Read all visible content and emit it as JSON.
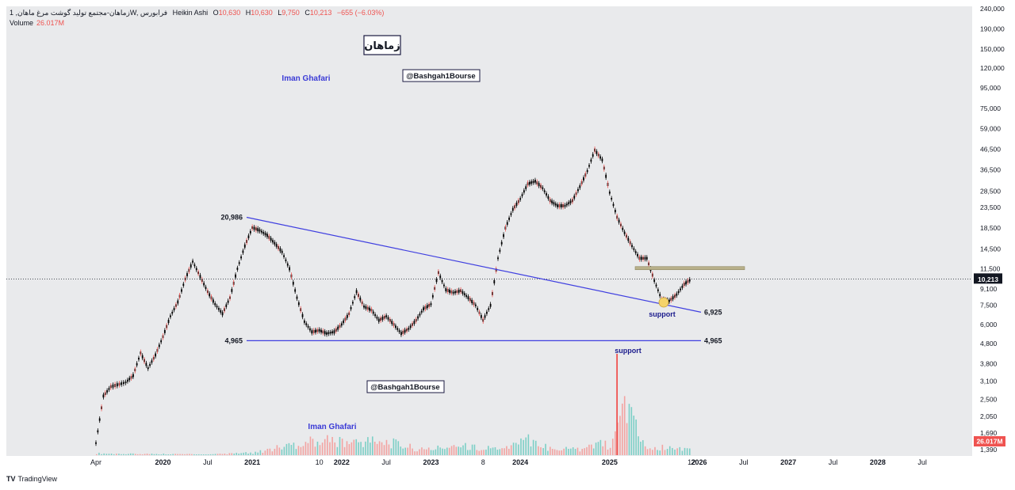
{
  "header": {
    "symbol": "زماهان-مجتمع تولید گوشت مرغ ماهان, 1W, فرابورس",
    "chart_style": "Heikin Ashi",
    "open_label": "O",
    "open": "10,630",
    "high_label": "H",
    "high": "10,630",
    "low_label": "L",
    "low": "9,750",
    "close_label": "C",
    "close": "10,213",
    "change": "−655 (−6.03%)"
  },
  "volume": {
    "label": "Volume",
    "value": "26.017M"
  },
  "footer": {
    "logo": "TV",
    "brand": "TradingView"
  },
  "colors": {
    "up": "#26a69a",
    "down": "#ef5350",
    "candle": "#000000",
    "trendline": "#3f3fe0",
    "support_zone": "#b8b08a",
    "background": "#e9eaec"
  },
  "chart_data": {
    "type": "line",
    "style": "heikin-ashi candles with volume",
    "scale": "log",
    "ylim": [
      1300,
      240000
    ],
    "y_ticks": [
      "240,000",
      "190,000",
      "150,000",
      "120,000",
      "95,000",
      "75,000",
      "59,000",
      "46,500",
      "36,500",
      "28,500",
      "23,500",
      "18,500",
      "14,500",
      "11,500",
      "9,100",
      "7,500",
      "6,000",
      "4,800",
      "3,800",
      "3,100",
      "2,500",
      "2,050",
      "1,690",
      "1,390"
    ],
    "y_tick_values": [
      240000,
      190000,
      150000,
      120000,
      95000,
      75000,
      59000,
      46500,
      36500,
      28500,
      23500,
      18500,
      14500,
      11500,
      9100,
      7500,
      6000,
      4800,
      3800,
      3100,
      2500,
      2050,
      1690,
      1390
    ],
    "x_ticks": [
      "Apr",
      "2020",
      "Jul",
      "2021",
      "10",
      "2022",
      "Jul",
      "2023",
      "8",
      "2024",
      "2025",
      "12",
      "2026",
      "Jul",
      "2027",
      "Jul",
      "2028",
      "Jul"
    ],
    "x_tick_dates": [
      "2019-04",
      "2020-01",
      "2020-07",
      "2021-01",
      "2021-10",
      "2022-01",
      "2022-07",
      "2023-01",
      "2023-08",
      "2024-01",
      "2025-01",
      "2025-12",
      "2026-01",
      "2026-07",
      "2027-01",
      "2027-07",
      "2028-01",
      "2028-07"
    ],
    "price_series": {
      "x": [
        "2019-04",
        "2019-05",
        "2019-06",
        "2019-08",
        "2019-09",
        "2019-10",
        "2019-11",
        "2019-12",
        "2020-01",
        "2020-02",
        "2020-03",
        "2020-04",
        "2020-05",
        "2020-06",
        "2020-07",
        "2020-08",
        "2020-09",
        "2020-10",
        "2020-11",
        "2020-12",
        "2021-01",
        "2021-02",
        "2021-03",
        "2021-04",
        "2021-05",
        "2021-06",
        "2021-07",
        "2021-08",
        "2021-09",
        "2021-10",
        "2021-11",
        "2021-12",
        "2022-01",
        "2022-02",
        "2022-03",
        "2022-04",
        "2022-05",
        "2022-06",
        "2022-07",
        "2022-08",
        "2022-09",
        "2022-10",
        "2022-11",
        "2022-12",
        "2023-01",
        "2023-02",
        "2023-03",
        "2023-04",
        "2023-05",
        "2023-06",
        "2023-07",
        "2023-08",
        "2023-09",
        "2023-10",
        "2023-11",
        "2023-12",
        "2024-01",
        "2024-02",
        "2024-03",
        "2024-04",
        "2024-05",
        "2024-06",
        "2024-07",
        "2024-08",
        "2024-09",
        "2024-10",
        "2024-11",
        "2024-12",
        "2025-01",
        "2025-02",
        "2025-03",
        "2025-04",
        "2025-05",
        "2025-06",
        "2025-07",
        "2025-08",
        "2025-09",
        "2025-10",
        "2025-11",
        "2025-12"
      ],
      "values": [
        1500,
        2600,
        2900,
        3050,
        3300,
        4300,
        3600,
        4200,
        5200,
        6600,
        7800,
        10200,
        12500,
        10500,
        8800,
        7600,
        6800,
        8200,
        11500,
        15000,
        18600,
        18000,
        17000,
        15500,
        14000,
        11500,
        8200,
        6200,
        5500,
        5600,
        5400,
        5500,
        6000,
        6800,
        8800,
        7400,
        7100,
        6300,
        6600,
        6000,
        5400,
        5700,
        6300,
        7200,
        7600,
        11000,
        9000,
        8700,
        8900,
        8200,
        7500,
        6300,
        7500,
        13000,
        18500,
        23000,
        26000,
        31000,
        32000,
        29500,
        25500,
        24000,
        24000,
        25500,
        30000,
        36000,
        46000,
        41000,
        28000,
        21000,
        17500,
        15000,
        13000,
        13000,
        10000,
        8000,
        7900,
        8500,
        9600,
        10213
      ]
    },
    "volume_series": {
      "x": [
        "2019-04",
        "2019-07",
        "2020-01",
        "2020-07",
        "2021-01",
        "2021-02",
        "2021-10",
        "2022-01",
        "2022-06",
        "2022-12",
        "2023-04",
        "2023-08",
        "2023-12",
        "2024-01",
        "2024-02",
        "2024-04",
        "2024-08",
        "2024-12",
        "2025-01",
        "2025-02",
        "2025-06",
        "2025-08",
        "2025-10",
        "2025-12"
      ],
      "values": [
        3,
        2,
        2,
        1,
        4,
        6,
        27,
        20,
        24,
        8,
        16,
        11,
        15,
        25,
        28,
        14,
        9,
        18,
        14,
        100,
        7,
        12,
        9,
        14
      ],
      "unit": "relative (M)"
    },
    "trendline_upper": {
      "start_label": "20,986",
      "start_value": 20986,
      "start_x": "2021-01",
      "end_label": "6,925",
      "end_value": 6925,
      "end_x": "2026-01"
    },
    "trendline_lower": {
      "start_label": "4,965",
      "end_label": "4,965",
      "value": 4965,
      "start_x": "2021-01",
      "end_x": "2026-01"
    },
    "support_zone": {
      "low": 11500,
      "high": 11800,
      "start_x": "2025-06",
      "end_x": "2026-06"
    },
    "current_price_label": "10,213",
    "volume_label": "26.017M",
    "annotations": {
      "support_upper": "support",
      "support_lower": "support",
      "title_box": "زماهان",
      "author_top": "Iman Ghafari",
      "author_bottom": "Iman Ghafari",
      "handle_top": "@Bashgah1Bourse",
      "handle_bottom": "@Bashgah1Bourse"
    },
    "grid": false,
    "legend": "none"
  }
}
